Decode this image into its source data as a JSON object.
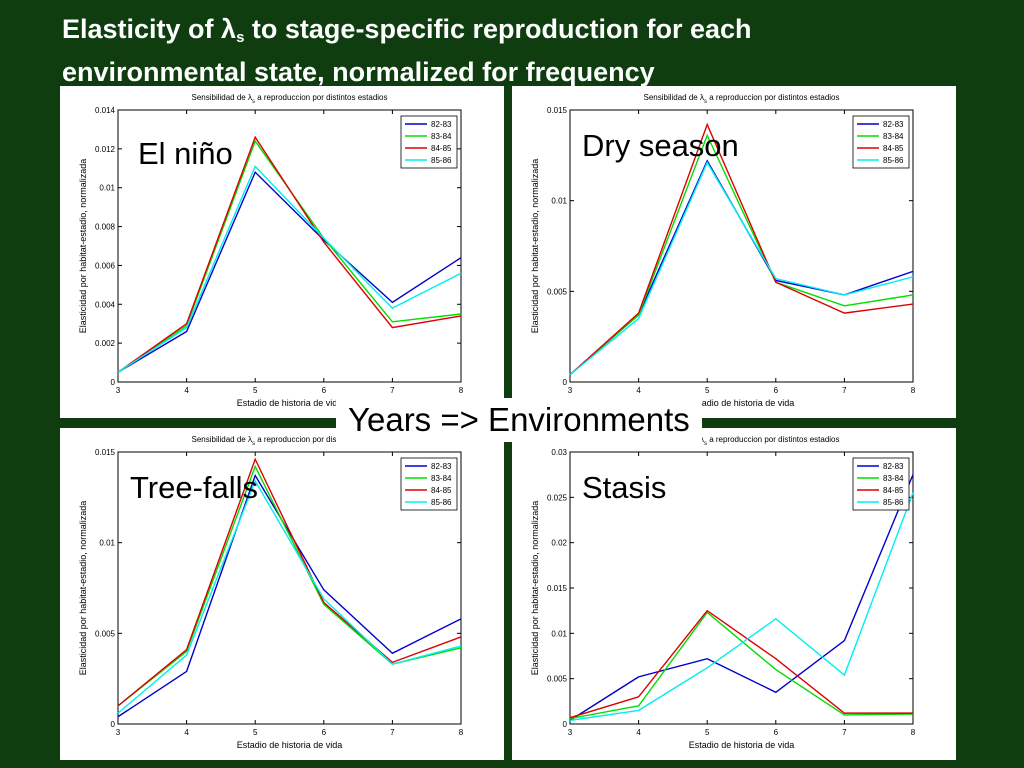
{
  "slide": {
    "title_line1_pre": "Elasticity of λ",
    "title_sub": "s",
    "title_line1_post": " to stage-specific reproduction for each",
    "title_line2": "environmental state, normalized for frequency",
    "banner": "Years => Environments"
  },
  "colors": {
    "background": "#0f3d10",
    "series": [
      "#0000cc",
      "#00dd00",
      "#dd0000",
      "#00eeee"
    ]
  },
  "chart_data": [
    {
      "type": "line",
      "label": "El niño",
      "title_pre": "Sensibilidad de λ",
      "title_sub": "s",
      "title_post": " a reproduccion por distintos estadios",
      "xlabel": "Estadio de historia de vida",
      "ylabel": "Elasticidad por habitat-estadio, normalizada",
      "x": [
        3,
        4,
        5,
        6,
        7,
        8
      ],
      "xlim": [
        3,
        8
      ],
      "ylim": [
        0,
        0.014
      ],
      "yticks": [
        "0",
        "0.002",
        "0.004",
        "0.006",
        "0.008",
        "0.01",
        "0.012",
        "0.014"
      ],
      "ytick_values": [
        0,
        0.002,
        0.004,
        0.006,
        0.008,
        0.01,
        0.012,
        0.014
      ],
      "legend": "top-right",
      "series": [
        {
          "name": "82-83",
          "values": [
            0.0005,
            0.0026,
            0.0108,
            0.0073,
            0.0041,
            0.0064
          ]
        },
        {
          "name": "83-84",
          "values": [
            0.0005,
            0.0029,
            0.0124,
            0.0074,
            0.0031,
            0.0035
          ]
        },
        {
          "name": "84-85",
          "values": [
            0.0005,
            0.003,
            0.0126,
            0.0072,
            0.0028,
            0.0034
          ]
        },
        {
          "name": "85-86",
          "values": [
            0.0005,
            0.0028,
            0.0111,
            0.0074,
            0.0038,
            0.0056
          ]
        }
      ]
    },
    {
      "type": "line",
      "label": "Dry season",
      "title_pre": "Sensibilidad de λ",
      "title_sub": "s",
      "title_post": " a reproduccion por distintos estadios",
      "xlabel": "Estadio de historia de vida",
      "ylabel": "Elasticidad por habitat-estadio, normalizada",
      "x": [
        3,
        4,
        5,
        6,
        7,
        8
      ],
      "xlim": [
        3,
        8
      ],
      "ylim": [
        0,
        0.015
      ],
      "yticks": [
        "0",
        "0.005",
        "0.01",
        "0.015"
      ],
      "ytick_values": [
        0,
        0.005,
        0.01,
        0.015
      ],
      "legend": "top-right",
      "series": [
        {
          "name": "82-83",
          "values": [
            0.0004,
            0.0037,
            0.0122,
            0.0056,
            0.0048,
            0.0061
          ]
        },
        {
          "name": "83-84",
          "values": [
            0.0004,
            0.0037,
            0.0136,
            0.0055,
            0.0042,
            0.0048
          ]
        },
        {
          "name": "84-85",
          "values": [
            0.0004,
            0.0038,
            0.0142,
            0.0055,
            0.0038,
            0.0043
          ]
        },
        {
          "name": "85-86",
          "values": [
            0.0004,
            0.0035,
            0.0121,
            0.0057,
            0.0048,
            0.0058
          ]
        }
      ]
    },
    {
      "type": "line",
      "label": "Tree-falls",
      "title_pre": "Sensibilidad de λ",
      "title_sub": "s",
      "title_post": " a reproduccion por distintos estadios",
      "xlabel": "Estadio de historia de vida",
      "ylabel": "Elasticidad por habitat-estadio, normalizada",
      "x": [
        3,
        4,
        5,
        6,
        7,
        8
      ],
      "xlim": [
        3,
        8
      ],
      "ylim": [
        0,
        0.015
      ],
      "yticks": [
        "0",
        "0.005",
        "0.01",
        "0.015"
      ],
      "ytick_values": [
        0,
        0.005,
        0.01,
        0.015
      ],
      "legend": "top-right",
      "series": [
        {
          "name": "82-83",
          "values": [
            0.0004,
            0.0029,
            0.0137,
            0.0074,
            0.0039,
            0.0058
          ]
        },
        {
          "name": "83-84",
          "values": [
            0.001,
            0.004,
            0.0142,
            0.0066,
            0.0033,
            0.0042
          ]
        },
        {
          "name": "84-85",
          "values": [
            0.001,
            0.0041,
            0.0146,
            0.0067,
            0.0034,
            0.0048
          ]
        },
        {
          "name": "85-86",
          "values": [
            0.0006,
            0.0038,
            0.0134,
            0.0069,
            0.0033,
            0.0043
          ]
        }
      ]
    },
    {
      "type": "line",
      "label": "Stasis",
      "title_pre": "Sensibilidad de λ",
      "title_sub": "s",
      "title_post": " a reproduccion por distintos estadios",
      "xlabel": "Estadio de historia de vida",
      "ylabel": "Elasticidad por habitat-estadio, normalizada",
      "x": [
        3,
        4,
        5,
        6,
        7,
        8
      ],
      "xlim": [
        3,
        8
      ],
      "ylim": [
        0,
        0.03
      ],
      "yticks": [
        "0",
        "0.005",
        "0.01",
        "0.015",
        "0.02",
        "0.025",
        "0.03"
      ],
      "ytick_values": [
        0,
        0.005,
        0.01,
        0.015,
        0.02,
        0.025,
        0.03
      ],
      "legend": "top-right",
      "series": [
        {
          "name": "82-83",
          "values": [
            0.0004,
            0.0052,
            0.0072,
            0.0035,
            0.0092,
            0.0275
          ]
        },
        {
          "name": "83-84",
          "values": [
            0.0006,
            0.002,
            0.0123,
            0.006,
            0.001,
            0.0011
          ]
        },
        {
          "name": "84-85",
          "values": [
            0.0007,
            0.003,
            0.0125,
            0.0072,
            0.0012,
            0.0012
          ]
        },
        {
          "name": "85-86",
          "values": [
            0.0004,
            0.0015,
            0.0062,
            0.0116,
            0.0054,
            0.0255
          ]
        }
      ]
    }
  ]
}
